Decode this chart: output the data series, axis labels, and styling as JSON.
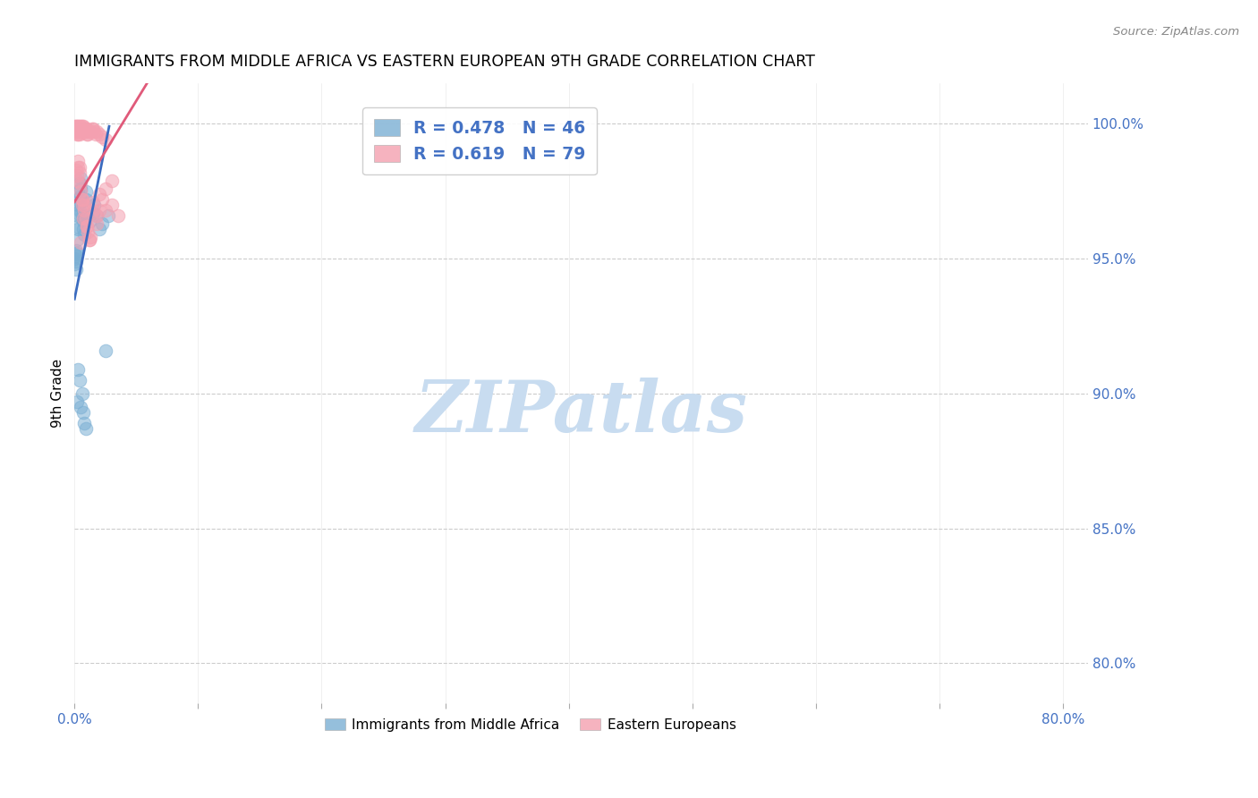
{
  "title": "IMMIGRANTS FROM MIDDLE AFRICA VS EASTERN EUROPEAN 9TH GRADE CORRELATION CHART",
  "source": "Source: ZipAtlas.com",
  "ylabel": "9th Grade",
  "legend_blue_label": "R = 0.478   N = 46",
  "legend_pink_label": "R = 0.619   N = 79",
  "blue_color": "#7BAFD4",
  "pink_color": "#F4A0B0",
  "blue_line_color": "#3A6BBF",
  "pink_line_color": "#E05A7A",
  "watermark_text": "ZIPatlas",
  "watermark_color": "#C8DCF0",
  "legend_label_blue": "Immigrants from Middle Africa",
  "legend_label_pink": "Eastern Europeans",
  "axis_tick_color": "#4472C4",
  "grid_color": "#cccccc",
  "title_fontsize": 12.5,
  "xlim": [
    0.0,
    0.82
  ],
  "ylim": [
    0.785,
    1.015
  ],
  "x_ticks": [
    0.0,
    0.1,
    0.2,
    0.3,
    0.4,
    0.5,
    0.6,
    0.7,
    0.8
  ],
  "y_ticks": [
    1.0,
    0.95,
    0.9,
    0.85,
    0.8
  ],
  "y_tick_labels": [
    "100.0%",
    "95.0%",
    "90.0%",
    "85.0%",
    "80.0%"
  ],
  "blue_line": {
    "x0": 0.0,
    "y0": 0.935,
    "x1": 0.028,
    "y1": 0.999
  },
  "pink_line": {
    "x0": 0.0,
    "y0": 0.971,
    "x1": 0.028,
    "y1": 0.992
  },
  "blue_x": [
    0.0,
    0.0,
    0.0,
    0.001,
    0.001,
    0.001,
    0.001,
    0.002,
    0.002,
    0.002,
    0.002,
    0.002,
    0.003,
    0.003,
    0.003,
    0.003,
    0.004,
    0.004,
    0.004,
    0.005,
    0.005,
    0.005,
    0.006,
    0.006,
    0.007,
    0.007,
    0.008,
    0.009,
    0.009,
    0.01,
    0.012,
    0.015,
    0.016,
    0.018,
    0.02,
    0.022,
    0.025,
    0.027,
    0.002,
    0.003,
    0.004,
    0.005,
    0.006,
    0.007,
    0.008,
    0.009
  ],
  "blue_y": [
    0.952,
    0.95,
    0.948,
    0.953,
    0.951,
    0.949,
    0.946,
    0.972,
    0.967,
    0.962,
    0.957,
    0.952,
    0.975,
    0.97,
    0.966,
    0.961,
    0.978,
    0.973,
    0.968,
    0.98,
    0.976,
    0.971,
    0.969,
    0.966,
    0.964,
    0.961,
    0.959,
    0.975,
    0.972,
    0.966,
    0.964,
    0.967,
    0.97,
    0.966,
    0.961,
    0.963,
    0.916,
    0.966,
    0.897,
    0.909,
    0.905,
    0.895,
    0.9,
    0.893,
    0.889,
    0.887
  ],
  "pink_x": [
    0.0,
    0.0,
    0.001,
    0.001,
    0.001,
    0.002,
    0.002,
    0.002,
    0.002,
    0.003,
    0.003,
    0.003,
    0.003,
    0.004,
    0.004,
    0.004,
    0.004,
    0.005,
    0.005,
    0.005,
    0.006,
    0.006,
    0.006,
    0.007,
    0.007,
    0.007,
    0.008,
    0.008,
    0.009,
    0.009,
    0.01,
    0.01,
    0.011,
    0.011,
    0.012,
    0.013,
    0.014,
    0.015,
    0.016,
    0.017,
    0.018,
    0.02,
    0.022,
    0.025,
    0.001,
    0.002,
    0.002,
    0.003,
    0.003,
    0.004,
    0.004,
    0.005,
    0.005,
    0.006,
    0.006,
    0.007,
    0.008,
    0.009,
    0.01,
    0.011,
    0.012,
    0.013,
    0.015,
    0.018,
    0.02,
    0.025,
    0.03,
    0.025,
    0.03,
    0.035,
    0.02,
    0.022,
    0.018,
    0.015,
    0.012,
    0.01,
    0.008,
    0.006,
    0.005
  ],
  "pink_y": [
    0.999,
    0.998,
    0.999,
    0.998,
    0.997,
    0.999,
    0.998,
    0.997,
    0.996,
    0.999,
    0.998,
    0.997,
    0.996,
    0.999,
    0.998,
    0.997,
    0.996,
    0.999,
    0.998,
    0.997,
    0.999,
    0.998,
    0.997,
    0.999,
    0.998,
    0.997,
    0.998,
    0.997,
    0.998,
    0.997,
    0.998,
    0.996,
    0.997,
    0.996,
    0.997,
    0.997,
    0.998,
    0.998,
    0.997,
    0.996,
    0.997,
    0.996,
    0.995,
    0.994,
    0.983,
    0.981,
    0.979,
    0.986,
    0.984,
    0.984,
    0.982,
    0.978,
    0.975,
    0.972,
    0.97,
    0.965,
    0.968,
    0.965,
    0.962,
    0.96,
    0.957,
    0.958,
    0.971,
    0.966,
    0.968,
    0.976,
    0.979,
    0.968,
    0.97,
    0.966,
    0.974,
    0.972,
    0.963,
    0.968,
    0.957,
    0.962,
    0.97,
    0.972,
    0.956
  ]
}
